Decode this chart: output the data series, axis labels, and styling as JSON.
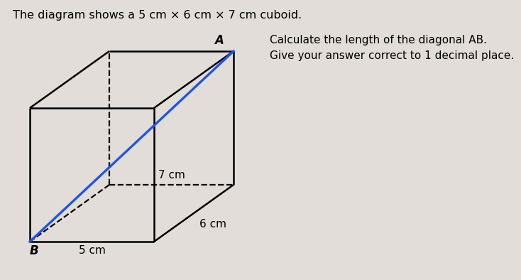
{
  "title": "The diagram shows a 5 cm × 6 cm × 7 cm cuboid.",
  "instruction_line1": "Calculate the length of the diagonal AB.",
  "instruction_line2": "Give your answer correct to 1 decimal place.",
  "label_A": "A",
  "label_B": "B",
  "label_5cm": "5 cm",
  "label_6cm": "6 cm",
  "label_7cm": "7 cm",
  "bg_color": "#e2ddd8",
  "line_color": "#000000",
  "dashed_color": "#000000",
  "diagonal_color": "#2255dd",
  "text_color": "#000000",
  "title_fontsize": 11.5,
  "label_fontsize": 11,
  "instruction_fontsize": 11
}
